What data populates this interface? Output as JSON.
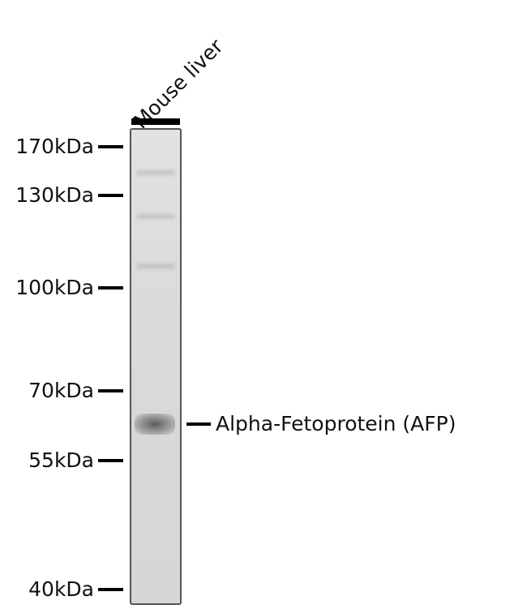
{
  "lane": {
    "label": "Mouse liver"
  },
  "markers": [
    {
      "label": "170kDa",
      "kda": 170
    },
    {
      "label": "130kDa",
      "kda": 130
    },
    {
      "label": "100kDa",
      "kda": 100
    },
    {
      "label": "70kDa",
      "kda": 70
    },
    {
      "label": "55kDa",
      "kda": 55
    },
    {
      "label": "40kDa",
      "kda": 40
    }
  ],
  "target": {
    "label": "Alpha-Fetoprotein (AFP)"
  }
}
